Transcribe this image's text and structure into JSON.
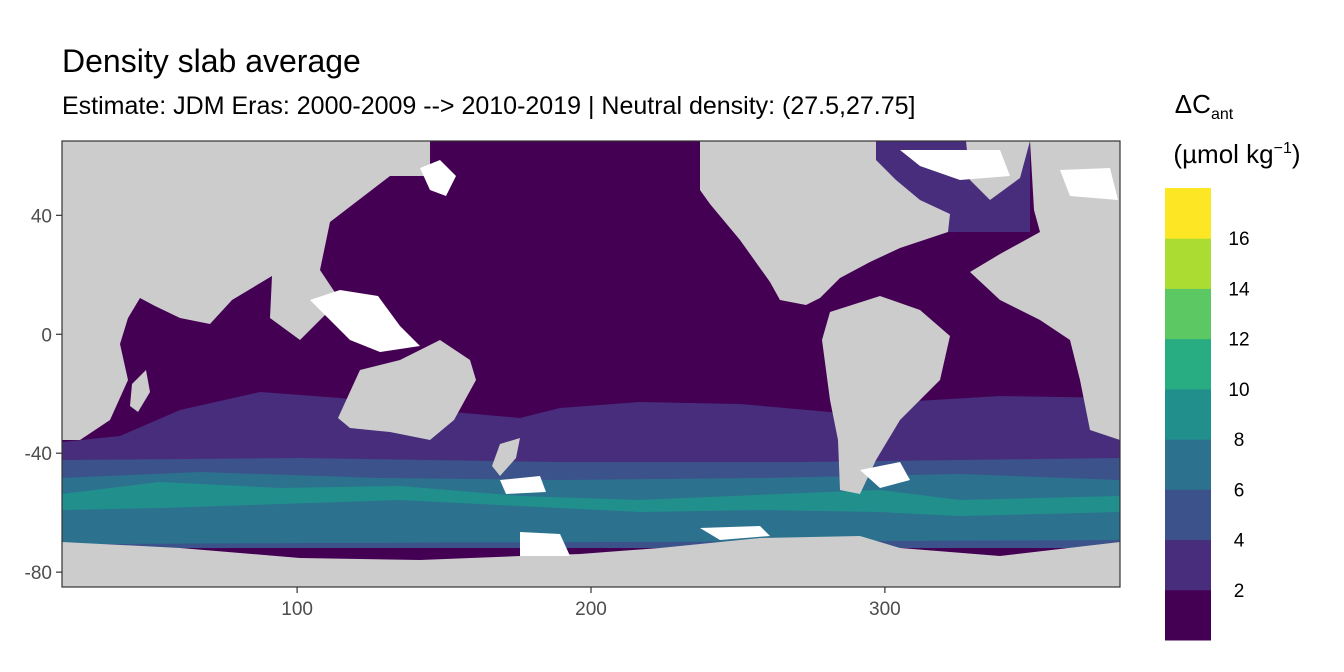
{
  "title": "Density slab average",
  "subtitle": "Estimate: JDM Eras: 2000-2009 --> 2010-2019 | Neutral density: (27.5,27.75]",
  "chart_data": {
    "type": "heatmap",
    "title": "Density slab average",
    "subtitle": "Estimate: JDM Eras: 2000-2009 --> 2010-2019 | Neutral density: (27.5,27.75]",
    "xlabel": "",
    "ylabel": "",
    "xlim": [
      20,
      380
    ],
    "ylim": [
      -85,
      65
    ],
    "x_ticks": [
      100,
      200,
      300
    ],
    "y_ticks": [
      40,
      0,
      -40,
      -80
    ],
    "grid": false,
    "variable": "ΔCant (µmol kg−1)",
    "legend": {
      "title_main": "ΔC",
      "title_sub": "ant",
      "unit_main": "(µmol kg",
      "unit_sup": "−1",
      "unit_close": ")",
      "position": "right",
      "breaks": [
        0,
        2,
        4,
        6,
        8,
        10,
        12,
        14,
        16,
        18
      ],
      "labels": [
        "2",
        "4",
        "6",
        "8",
        "10",
        "12",
        "14",
        "16"
      ],
      "colors": [
        "#440154",
        "#472d7b",
        "#3b528b",
        "#2c728e",
        "#21908d",
        "#27ad81",
        "#5cc863",
        "#aadc32",
        "#fde725"
      ]
    },
    "land_color": "#cccccc",
    "no_data_color": "#ffffff",
    "zonal_bands": [
      {
        "lat_range": [
          -40,
          65
        ],
        "class": "0-2",
        "color": "#440154"
      },
      {
        "lat_range": [
          -42,
          -30
        ],
        "class": "2-4",
        "color": "#472d7b"
      },
      {
        "lat_range": [
          -52,
          -42
        ],
        "class": "4-6",
        "color": "#3b528b"
      },
      {
        "lat_range": [
          -58,
          -52
        ],
        "class": "6-8",
        "color": "#2c728e"
      },
      {
        "lat_range": [
          -64,
          -58
        ],
        "class": "8-10",
        "color": "#21908d"
      },
      {
        "lat_range": [
          -70,
          -64
        ],
        "class": "6-8",
        "color": "#2c728e"
      },
      {
        "lat_range": [
          -75,
          -70
        ],
        "class": "4-6",
        "color": "#3b528b"
      },
      {
        "lat_range": [
          60,
          70
        ],
        "region": "North Atlantic",
        "class": "2-4",
        "color": "#472d7b"
      }
    ]
  }
}
